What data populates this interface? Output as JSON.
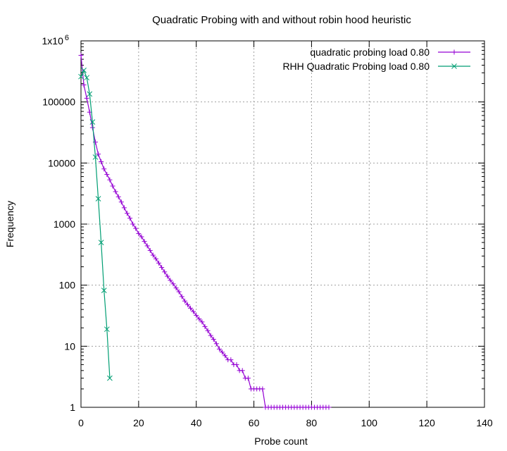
{
  "chart_data": {
    "type": "line",
    "title": "Quadratic Probing with and without robin hood heuristic",
    "xlabel": "Probe count",
    "ylabel": "Frequency",
    "xlim": [
      0,
      140
    ],
    "ylim": [
      1,
      1000000
    ],
    "yscale": "log",
    "grid": true,
    "legend_position": "top-right",
    "xticks": [
      "0",
      "20",
      "40",
      "60",
      "80",
      "100",
      "120",
      "140"
    ],
    "yticks": [
      "1",
      "10",
      "100",
      "1000",
      "10000",
      "100000",
      "1x10"
    ],
    "ytick_top_exponent": "6",
    "series": [
      {
        "name": "quadratic probing load 0.80",
        "color": "#9400d3",
        "marker": "plus",
        "x": [
          0,
          1,
          2,
          3,
          4,
          5,
          6,
          7,
          8,
          9,
          10,
          11,
          12,
          13,
          14,
          15,
          16,
          17,
          18,
          19,
          20,
          21,
          22,
          23,
          24,
          25,
          26,
          27,
          28,
          29,
          30,
          31,
          32,
          33,
          34,
          35,
          36,
          37,
          38,
          39,
          40,
          41,
          42,
          43,
          44,
          45,
          46,
          47,
          48,
          49,
          50,
          51,
          52,
          53,
          54,
          55,
          56,
          57,
          58,
          59,
          60,
          61,
          62,
          63,
          64,
          65,
          66,
          67,
          68,
          69,
          70,
          71,
          72,
          73,
          74,
          75,
          76,
          77,
          78,
          79,
          80,
          81,
          82,
          83,
          84,
          85,
          86
        ],
        "y": [
          580000,
          190000,
          115000,
          68000,
          38000,
          22000,
          14000,
          10500,
          8000,
          6500,
          5300,
          4200,
          3400,
          2800,
          2300,
          1850,
          1500,
          1250,
          1000,
          850,
          700,
          620,
          520,
          440,
          370,
          310,
          270,
          230,
          195,
          165,
          140,
          120,
          105,
          90,
          78,
          65,
          55,
          48,
          42,
          37,
          32,
          28,
          25,
          21,
          18,
          15,
          13,
          11,
          9,
          8,
          7,
          6,
          6,
          5,
          5,
          4,
          4,
          3,
          3,
          2,
          2,
          2,
          2,
          2,
          1,
          1,
          1,
          1,
          1,
          1,
          1,
          1,
          1,
          1,
          1,
          1,
          1,
          1,
          1,
          1,
          1,
          1,
          1,
          1,
          1,
          1,
          1
        ]
      },
      {
        "name": "RHH Quadratic Probing load 0.80",
        "color": "#009e73",
        "marker": "cross",
        "x": [
          0,
          1,
          2,
          3,
          4,
          5,
          6,
          7,
          8,
          9,
          10
        ],
        "y": [
          260000,
          330000,
          250000,
          135000,
          47000,
          12500,
          2600,
          500,
          82,
          19,
          3
        ]
      }
    ]
  }
}
